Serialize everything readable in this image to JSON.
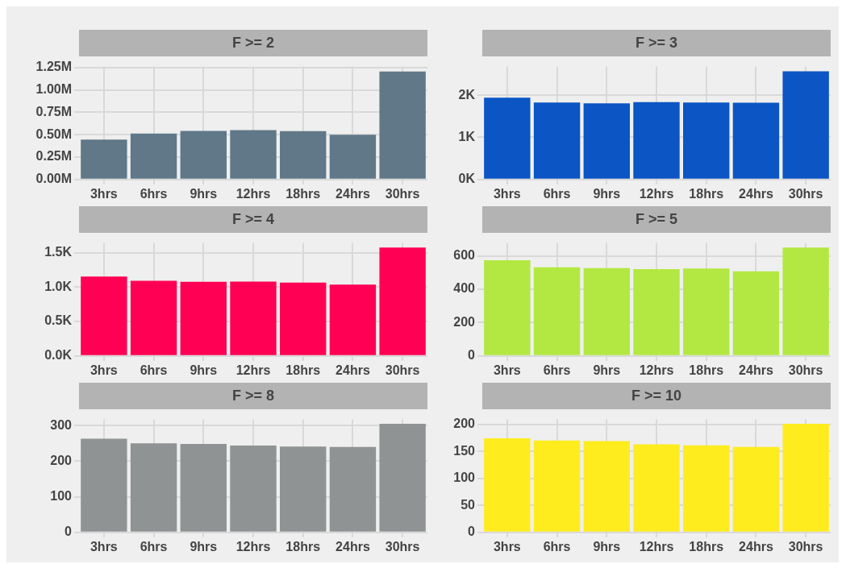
{
  "chart_data": [
    {
      "type": "bar",
      "title": "F >= 2",
      "categories": [
        "3hrs",
        "6hrs",
        "9hrs",
        "12hrs",
        "18hrs",
        "24hrs",
        "30hrs"
      ],
      "values": [
        446000,
        512000,
        542000,
        551000,
        539000,
        500000,
        1204000
      ],
      "color": "#607888",
      "ylim": [
        0,
        1260000
      ],
      "yticks": [
        {
          "value": 0,
          "label": "0.00M"
        },
        {
          "value": 250000,
          "label": "0.25M"
        },
        {
          "value": 500000,
          "label": "0.50M"
        },
        {
          "value": 750000,
          "label": "0.75M"
        },
        {
          "value": 1000000,
          "label": "1.00M"
        },
        {
          "value": 1250000,
          "label": "1.25M"
        }
      ],
      "grid": true
    },
    {
      "type": "bar",
      "title": "F >= 3",
      "categories": [
        "3hrs",
        "6hrs",
        "9hrs",
        "12hrs",
        "18hrs",
        "24hrs",
        "30hrs"
      ],
      "values": [
        1943,
        1827,
        1808,
        1834,
        1827,
        1821,
        2569
      ],
      "color": "#0b55c4",
      "ylim": [
        0,
        2680
      ],
      "yticks": [
        {
          "value": 0,
          "label": "0K"
        },
        {
          "value": 1000,
          "label": "1K"
        },
        {
          "value": 2000,
          "label": "2K"
        }
      ],
      "grid": true
    },
    {
      "type": "bar",
      "title": "F >= 4",
      "categories": [
        "3hrs",
        "6hrs",
        "9hrs",
        "12hrs",
        "18hrs",
        "24hrs",
        "30hrs"
      ],
      "values": [
        1154,
        1092,
        1076,
        1080,
        1064,
        1037,
        1575
      ],
      "color": "#ff0055",
      "ylim": [
        0,
        1640
      ],
      "yticks": [
        {
          "value": 0,
          "label": "0.0K"
        },
        {
          "value": 500,
          "label": "0.5K"
        },
        {
          "value": 1000,
          "label": "1.0K"
        },
        {
          "value": 1500,
          "label": "1.5K"
        }
      ],
      "grid": true
    },
    {
      "type": "bar",
      "title": "F >= 5",
      "categories": [
        "3hrs",
        "6hrs",
        "9hrs",
        "12hrs",
        "18hrs",
        "24hrs",
        "30hrs"
      ],
      "values": [
        574,
        531,
        526,
        521,
        524,
        507,
        650
      ],
      "color": "#b3e843",
      "ylim": [
        0,
        677
      ],
      "yticks": [
        0,
        200,
        400,
        600
      ],
      "grid": true
    },
    {
      "type": "bar",
      "title": "F >= 8",
      "categories": [
        "3hrs",
        "6hrs",
        "9hrs",
        "12hrs",
        "18hrs",
        "24hrs",
        "30hrs"
      ],
      "values": [
        263,
        250,
        248,
        244,
        241,
        240,
        305
      ],
      "color": "#8f9394",
      "ylim": [
        0,
        317
      ],
      "yticks": [
        0,
        100,
        200,
        300
      ],
      "grid": true
    },
    {
      "type": "bar",
      "title": "F >= 10",
      "categories": [
        "3hrs",
        "6hrs",
        "9hrs",
        "12hrs",
        "18hrs",
        "24hrs",
        "30hrs"
      ],
      "values": [
        174,
        170,
        169,
        163,
        161,
        158,
        201
      ],
      "color": "#ffec1f",
      "ylim": [
        0,
        209
      ],
      "yticks": [
        0,
        50,
        100,
        150,
        200
      ],
      "grid": true
    }
  ]
}
